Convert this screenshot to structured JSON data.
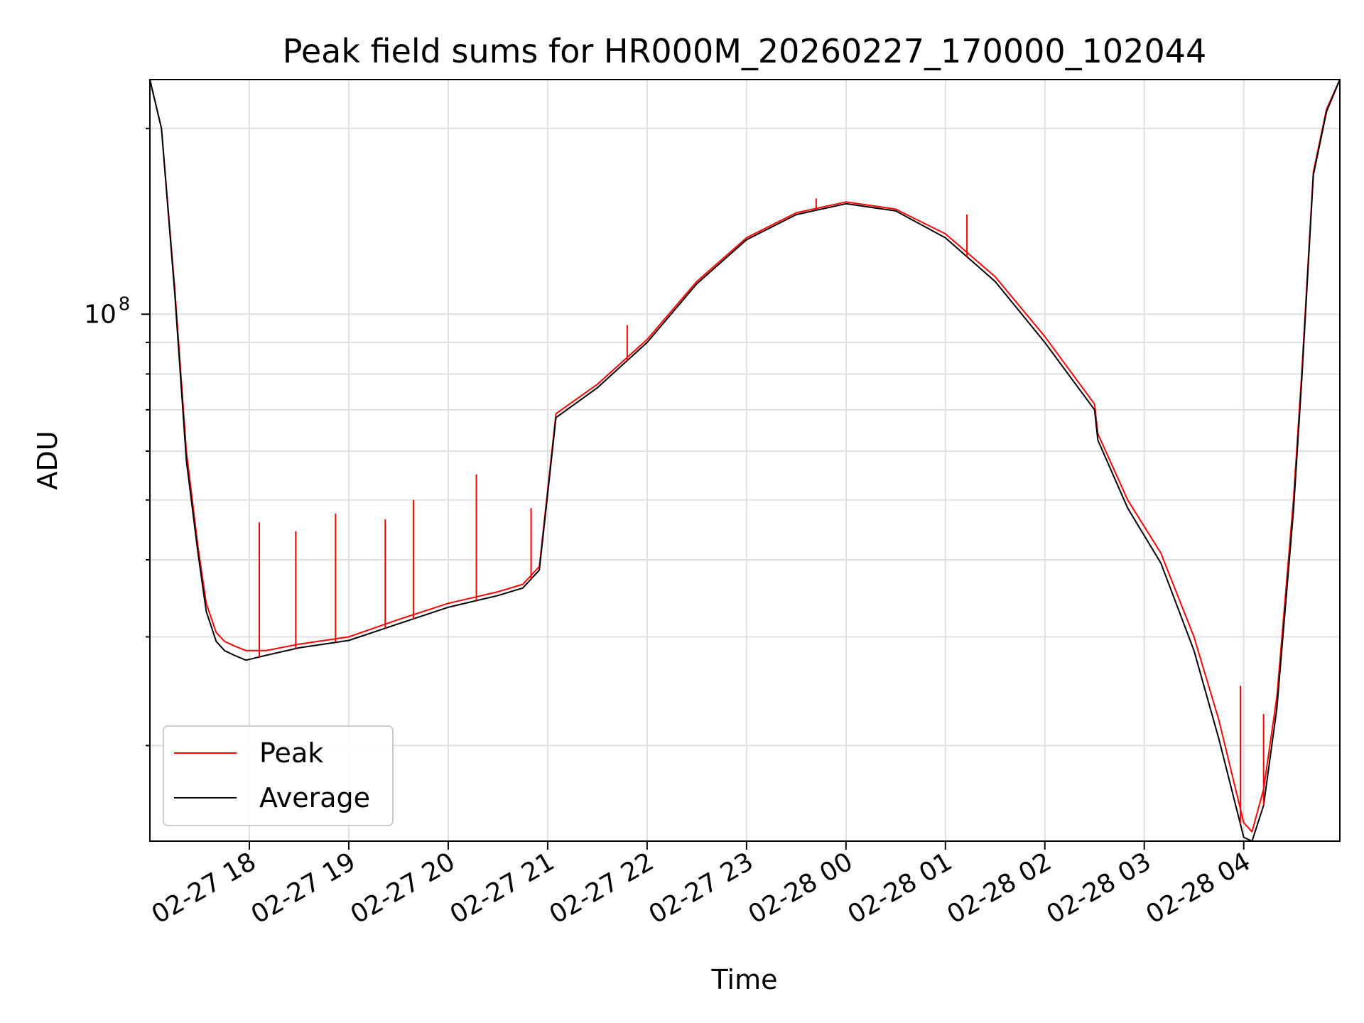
{
  "chart_data": {
    "type": "line",
    "title": "Peak field sums for HR000M_20260227_170000_102044",
    "xlabel": "Time",
    "ylabel": "ADU",
    "y_scale": "log",
    "ylim": [
      14000000,
      240000000
    ],
    "xlim": [
      "2026-02-27 17:00",
      "2026-02-28 04:58"
    ],
    "grid": true,
    "legend_position": "lower-left",
    "x_ticks": [
      {
        "t": "2026-02-27 18:00",
        "label": "02-27 18"
      },
      {
        "t": "2026-02-27 19:00",
        "label": "02-27 19"
      },
      {
        "t": "2026-02-27 20:00",
        "label": "02-27 20"
      },
      {
        "t": "2026-02-27 21:00",
        "label": "02-27 21"
      },
      {
        "t": "2026-02-27 22:00",
        "label": "02-27 22"
      },
      {
        "t": "2026-02-27 23:00",
        "label": "02-27 23"
      },
      {
        "t": "2026-02-28 00:00",
        "label": "02-28 00"
      },
      {
        "t": "2026-02-28 01:00",
        "label": "02-28 01"
      },
      {
        "t": "2026-02-28 02:00",
        "label": "02-28 02"
      },
      {
        "t": "2026-02-28 03:00",
        "label": "02-28 03"
      },
      {
        "t": "2026-02-28 04:00",
        "label": "02-28 04"
      }
    ],
    "y_major_ticks": [
      {
        "v": 100000000,
        "base": "10",
        "exp": "8"
      }
    ],
    "y_minor_ticks": [
      20000000,
      30000000,
      40000000,
      50000000,
      60000000,
      70000000,
      80000000,
      90000000,
      200000000
    ],
    "series": [
      {
        "name": "Peak",
        "color": "#ff0000",
        "x": [
          "2026-02-27 17:00",
          "2026-02-27 17:07",
          "2026-02-27 17:15",
          "2026-02-27 17:22",
          "2026-02-27 17:29",
          "2026-02-27 17:34",
          "2026-02-27 17:40",
          "2026-02-27 17:45",
          "2026-02-27 17:51",
          "2026-02-27 17:58",
          "2026-02-27 18:10",
          "2026-02-27 18:30",
          "2026-02-27 19:00",
          "2026-02-27 19:30",
          "2026-02-27 20:00",
          "2026-02-27 20:30",
          "2026-02-27 20:45",
          "2026-02-27 20:55",
          "2026-02-27 21:05",
          "2026-02-27 21:30",
          "2026-02-27 22:00",
          "2026-02-27 22:30",
          "2026-02-27 23:00",
          "2026-02-27 23:30",
          "2026-02-28 00:00",
          "2026-02-28 00:30",
          "2026-02-28 01:00",
          "2026-02-28 01:30",
          "2026-02-28 02:00",
          "2026-02-28 02:30",
          "2026-02-28 02:32",
          "2026-02-28 02:50",
          "2026-02-28 03:10",
          "2026-02-28 03:30",
          "2026-02-28 03:45",
          "2026-02-28 04:00",
          "2026-02-28 04:05",
          "2026-02-28 04:12",
          "2026-02-28 04:20",
          "2026-02-28 04:30",
          "2026-02-28 04:35",
          "2026-02-28 04:42",
          "2026-02-28 04:50",
          "2026-02-28 04:58"
        ],
        "values": [
          240000000,
          200000000,
          110000000,
          60000000,
          42000000,
          34000000,
          30500000,
          29500000,
          29000000,
          28500000,
          28500000,
          29200000,
          30000000,
          32000000,
          34000000,
          35500000,
          36500000,
          39000000,
          69000000,
          77000000,
          91000000,
          113000000,
          133000000,
          146000000,
          152000000,
          148000000,
          135000000,
          115000000,
          92000000,
          71500000,
          64000000,
          50000000,
          41000000,
          30000000,
          22000000,
          15000000,
          14500000,
          17000000,
          24000000,
          50000000,
          80000000,
          170000000,
          215000000,
          240000000
        ]
      },
      {
        "name": "Average",
        "color": "#000000",
        "x": [
          "2026-02-27 17:00",
          "2026-02-27 17:07",
          "2026-02-27 17:15",
          "2026-02-27 17:22",
          "2026-02-27 17:29",
          "2026-02-27 17:34",
          "2026-02-27 17:40",
          "2026-02-27 17:45",
          "2026-02-27 17:51",
          "2026-02-27 17:58",
          "2026-02-27 18:10",
          "2026-02-27 18:30",
          "2026-02-27 19:00",
          "2026-02-27 19:30",
          "2026-02-27 20:00",
          "2026-02-27 20:30",
          "2026-02-27 20:45",
          "2026-02-27 20:55",
          "2026-02-27 21:05",
          "2026-02-27 21:30",
          "2026-02-27 22:00",
          "2026-02-27 22:30",
          "2026-02-27 23:00",
          "2026-02-27 23:30",
          "2026-02-28 00:00",
          "2026-02-28 00:30",
          "2026-02-28 01:00",
          "2026-02-28 01:30",
          "2026-02-28 02:00",
          "2026-02-28 02:30",
          "2026-02-28 02:32",
          "2026-02-28 02:50",
          "2026-02-28 03:10",
          "2026-02-28 03:30",
          "2026-02-28 03:45",
          "2026-02-28 04:00",
          "2026-02-28 04:05",
          "2026-02-28 04:12",
          "2026-02-28 04:20",
          "2026-02-28 04:30",
          "2026-02-28 04:35",
          "2026-02-28 04:42",
          "2026-02-28 04:50",
          "2026-02-28 04:58"
        ],
        "values": [
          240000000,
          200000000,
          108000000,
          58000000,
          41000000,
          33000000,
          29500000,
          28500000,
          28000000,
          27500000,
          28000000,
          28800000,
          29600000,
          31500000,
          33500000,
          35000000,
          36000000,
          38500000,
          68000000,
          76000000,
          90000000,
          112000000,
          132000000,
          145000000,
          151000000,
          147000000,
          133000000,
          113000000,
          90000000,
          70000000,
          62500000,
          48500000,
          39500000,
          28500000,
          20500000,
          14200000,
          14000000,
          16000000,
          23000000,
          48000000,
          78000000,
          168000000,
          213000000,
          240000000
        ]
      }
    ],
    "spikes": [
      {
        "series": "Peak",
        "t": "2026-02-27 18:06",
        "v": 46000000
      },
      {
        "series": "Peak",
        "t": "2026-02-27 18:28",
        "v": 44500000
      },
      {
        "series": "Peak",
        "t": "2026-02-27 18:52",
        "v": 47500000
      },
      {
        "series": "Peak",
        "t": "2026-02-27 19:22",
        "v": 46500000
      },
      {
        "series": "Peak",
        "t": "2026-02-27 19:39",
        "v": 50000000
      },
      {
        "series": "Peak",
        "t": "2026-02-27 20:17",
        "v": 55000000
      },
      {
        "series": "Peak",
        "t": "2026-02-27 20:50",
        "v": 48500000
      },
      {
        "series": "Peak",
        "t": "2026-02-27 21:48",
        "v": 96000000
      },
      {
        "series": "Peak",
        "t": "2026-02-27 23:42",
        "v": 154000000
      },
      {
        "series": "Peak",
        "t": "2026-02-28 01:13",
        "v": 145000000
      },
      {
        "series": "Peak",
        "t": "2026-02-28 03:58",
        "v": 25000000
      },
      {
        "series": "Peak",
        "t": "2026-02-28 04:12",
        "v": 22500000
      }
    ]
  }
}
